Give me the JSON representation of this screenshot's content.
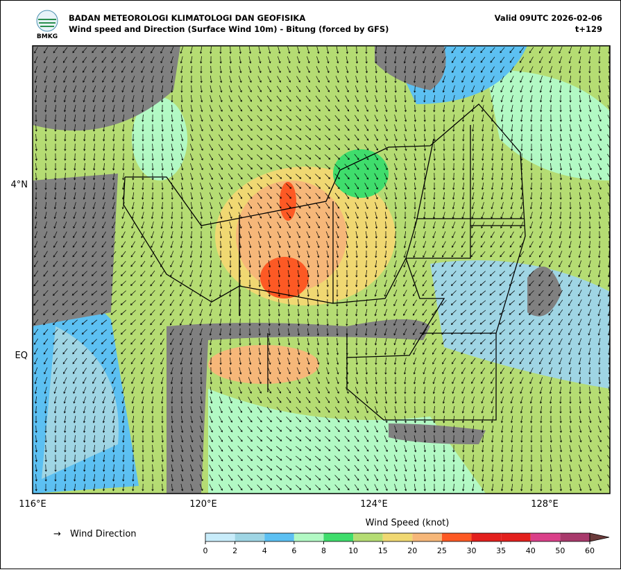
{
  "header": {
    "agency": "BADAN METEOROLOGI KLIMATOLOGI DAN GEOFISIKA",
    "subtitle": "Wind speed and Direction (Surface Wind 10m) - Bitung (forced by GFS)",
    "valid": "Valid 09UTC 2026-02-06",
    "lead": "t+129",
    "logo_text": "BMKG"
  },
  "map": {
    "lat_labels": [
      "4°N",
      "EQ"
    ],
    "lon_labels": [
      "116°E",
      "120°E",
      "124°E",
      "128°E"
    ]
  },
  "legend": {
    "arrow": "→",
    "label": "Wind Direction"
  },
  "colorbar": {
    "label": "Wind Speed (knot)",
    "ticks": [
      0,
      2,
      4,
      6,
      8,
      10,
      15,
      20,
      25,
      30,
      35,
      40,
      50,
      60
    ],
    "colors": [
      "#c8ecfa",
      "#9fd5e4",
      "#5cc0f2",
      "#b2f9c4",
      "#3fdd6c",
      "#b5dc73",
      "#f0d872",
      "#f6b779",
      "#fd5924",
      "#e3201d",
      "#e3201d",
      "#da4089",
      "#a83a6c"
    ],
    "extend_color": "#6b3b3b"
  }
}
